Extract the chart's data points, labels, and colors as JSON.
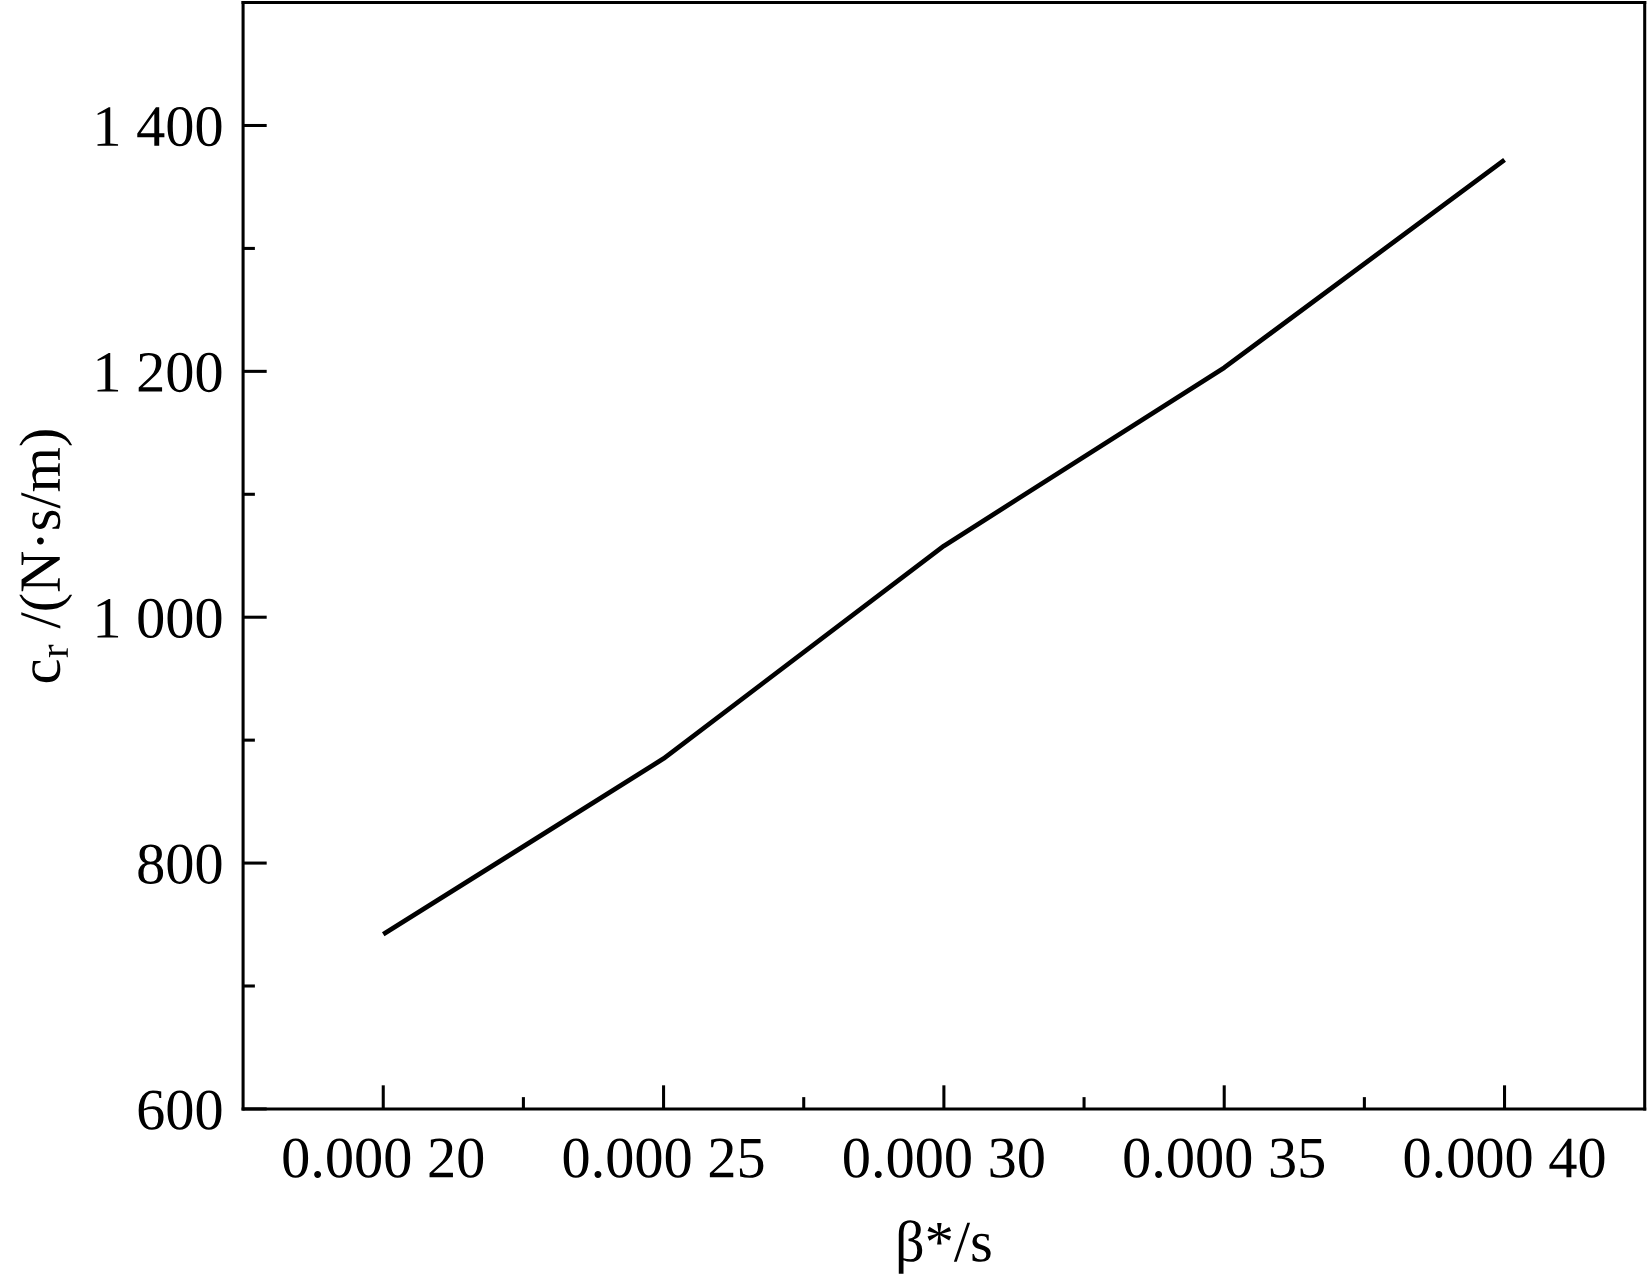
{
  "chart_data": {
    "type": "line",
    "categories": [
      "0.000 20",
      "0.000 25",
      "0.000 30",
      "0.000 35",
      "0.000 40"
    ],
    "values": [
      742,
      885,
      1058,
      1203,
      1372
    ],
    "color": "#000000",
    "xlabel": "β*/s",
    "ylabel": "c$_{r}$ /(N·s/m)",
    "ylim": [
      600,
      1500
    ],
    "yticks": [
      600,
      {
        "value": 700,
        "label": null
      },
      800,
      {
        "value": 900,
        "label": null
      },
      {
        "value": 1000,
        "label": "1 000"
      },
      {
        "value": 1100,
        "label": null
      },
      {
        "value": 1200,
        "label": "1 200"
      },
      {
        "value": 1300,
        "label": null
      },
      {
        "value": 1400,
        "label": "1 400"
      }
    ],
    "line_style": "solid"
  }
}
